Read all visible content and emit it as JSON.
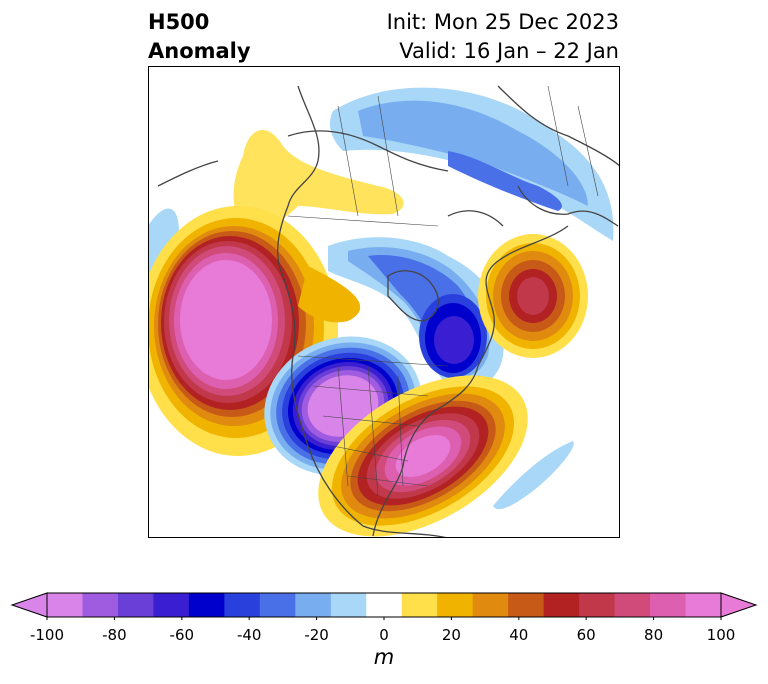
{
  "title": {
    "left_line1": "H500",
    "left_line2": "Anomaly",
    "init": "Init: Mon 25 Dec 2023",
    "valid": "Valid: 16 Jan – 22 Jan"
  },
  "colorbar": {
    "unit": "m",
    "ticks": [
      "-100",
      "-80",
      "-60",
      "-40",
      "-20",
      "0",
      "20",
      "40",
      "60",
      "80",
      "100"
    ],
    "colors": [
      "#d884e8",
      "#9f5ce0",
      "#6a3fd8",
      "#3a1fd2",
      "#0000cc",
      "#2a40dd",
      "#4a70e8",
      "#78aef0",
      "#a8d7f7",
      "#ffffff",
      "#ffe04a",
      "#f0b400",
      "#e08a10",
      "#c85a18",
      "#b22222",
      "#c0384a",
      "#d04a7a",
      "#dd60b0",
      "#e87ad8"
    ],
    "range": [
      -100,
      100
    ]
  }
}
